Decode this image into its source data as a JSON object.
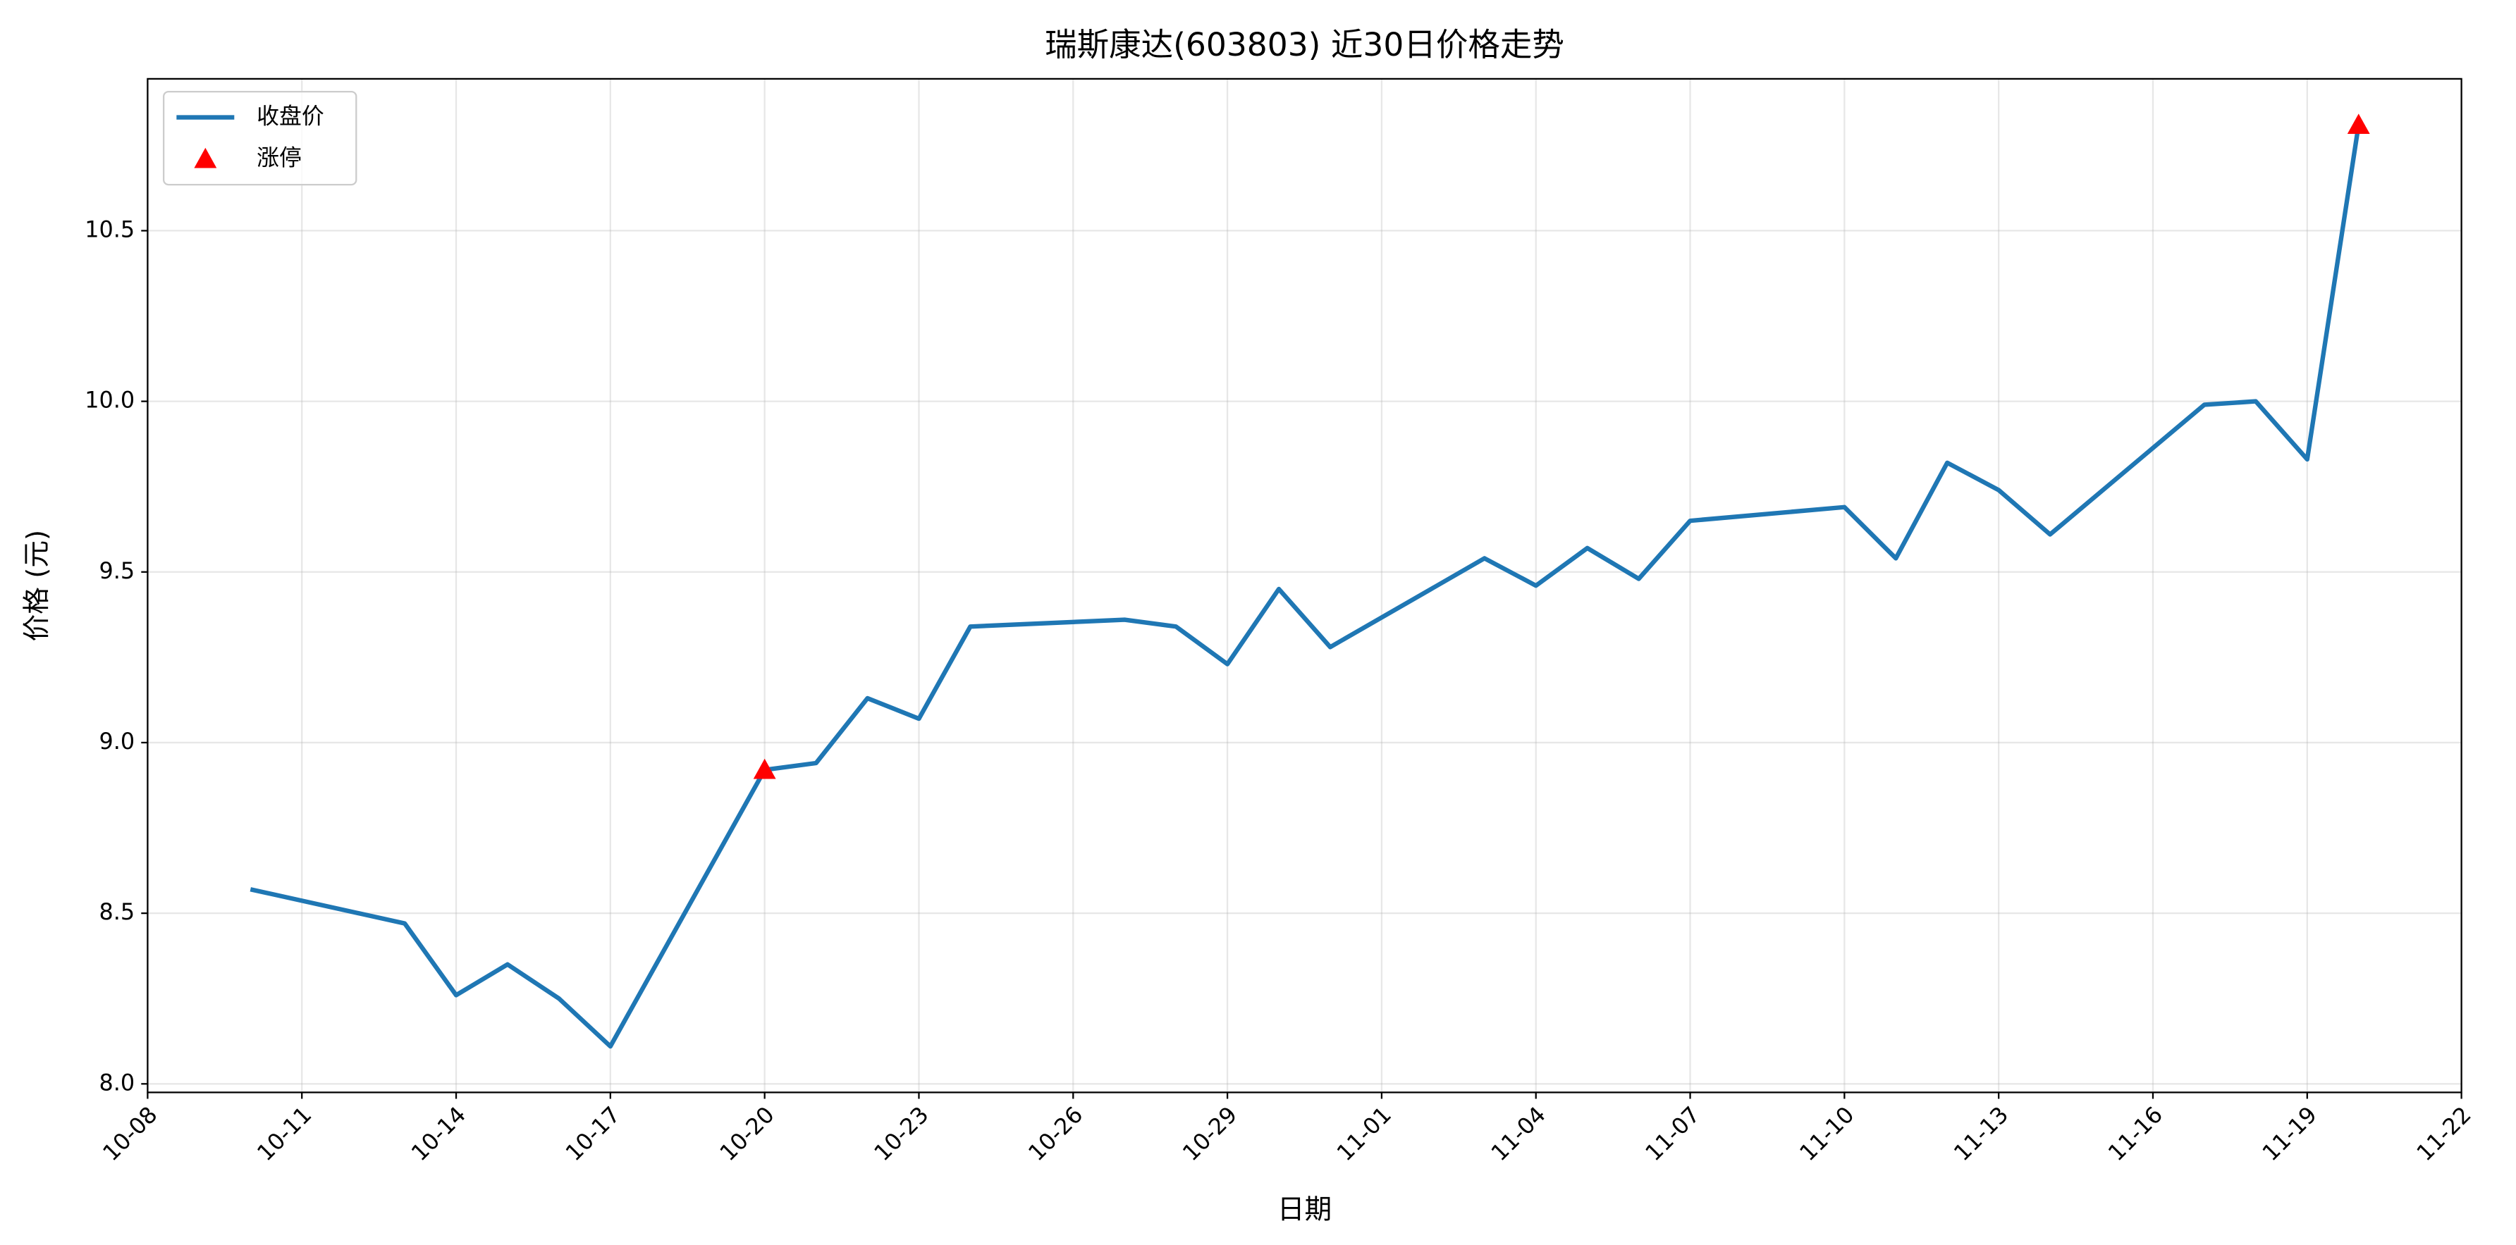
{
  "chart_data": {
    "type": "line",
    "title": "瑞斯康达(603803) 近30日价格走势",
    "xlabel": "日期",
    "ylabel": "价格 (元)",
    "x": [
      "10-10",
      "10-13",
      "10-14",
      "10-15",
      "10-16",
      "10-17",
      "10-20",
      "10-21",
      "10-22",
      "10-23",
      "10-24",
      "10-27",
      "10-28",
      "10-29",
      "10-30",
      "10-31",
      "11-03",
      "11-04",
      "11-05",
      "11-06",
      "11-07",
      "11-10",
      "11-11",
      "11-12",
      "11-13",
      "11-14",
      "11-17",
      "11-18",
      "11-19",
      "11-20"
    ],
    "series": [
      {
        "name": "收盘价",
        "color": "#1f77b4",
        "values": [
          8.57,
          8.47,
          8.26,
          8.35,
          8.25,
          8.11,
          8.92,
          8.94,
          9.13,
          9.07,
          9.34,
          9.36,
          9.34,
          9.23,
          9.45,
          9.28,
          9.54,
          9.46,
          9.57,
          9.48,
          9.65,
          9.69,
          9.54,
          9.82,
          9.74,
          9.61,
          9.99,
          10.0,
          9.83,
          10.81
        ]
      },
      {
        "name": "涨停",
        "type": "scatter",
        "marker": "triangle",
        "color": "#ff0000",
        "x": [
          "10-20",
          "11-20"
        ],
        "values": [
          8.92,
          10.81
        ]
      }
    ],
    "xlim": [
      "10-08",
      "11-22"
    ],
    "xticks": [
      "10-08",
      "10-11",
      "10-14",
      "10-17",
      "10-20",
      "10-23",
      "10-26",
      "10-29",
      "11-01",
      "11-04",
      "11-07",
      "11-10",
      "11-13",
      "11-16",
      "11-19",
      "11-22"
    ],
    "ylim": [
      7.975,
      10.945
    ],
    "yticks": [
      {
        "value": 8.0,
        "label": "8.0"
      },
      8.5,
      {
        "value": 9.0,
        "label": "9.0"
      },
      9.5,
      {
        "value": 10.0,
        "label": "10.0"
      },
      10.5
    ],
    "grid": true,
    "legend": "upper left"
  }
}
